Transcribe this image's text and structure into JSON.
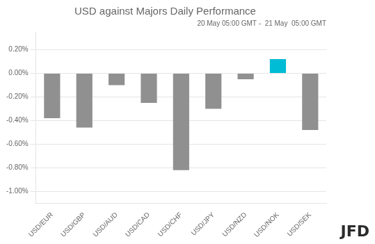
{
  "chart_data": {
    "type": "bar",
    "title": "USD against Majors Daily Performance",
    "subtitle": "20 May 05:00 GMT -  21 May  05:00 GMT",
    "annotations": [
      "JFD"
    ],
    "categories": [
      "USD/EUR",
      "USD/GBP",
      "USD/AUD",
      "USD/CAD",
      "USD/CHF",
      "USD/JPY",
      "USD/NZD",
      "USD/NOK",
      "USD/SEK"
    ],
    "values": [
      -0.0038,
      -0.0046,
      -0.001,
      -0.0025,
      -0.0082,
      -0.003,
      -0.0005,
      0.0012,
      -0.0048
    ],
    "colors": [
      "#909090",
      "#909090",
      "#909090",
      "#909090",
      "#909090",
      "#909090",
      "#909090",
      "#00BCD4",
      "#909090"
    ],
    "ylim": [
      -0.011,
      0.0035
    ],
    "yticks": [
      {
        "value": -0.01,
        "label": "-1.00%"
      },
      {
        "value": -0.008,
        "label": "-0.80%"
      },
      {
        "value": -0.006,
        "label": "-0.60%"
      },
      {
        "value": -0.004,
        "label": "-0.40%"
      },
      {
        "value": -0.002,
        "label": "-0.20%"
      },
      {
        "value": 0.0,
        "label": "0.00%"
      },
      {
        "value": 0.002,
        "label": "0.20%"
      }
    ],
    "grid": true
  }
}
